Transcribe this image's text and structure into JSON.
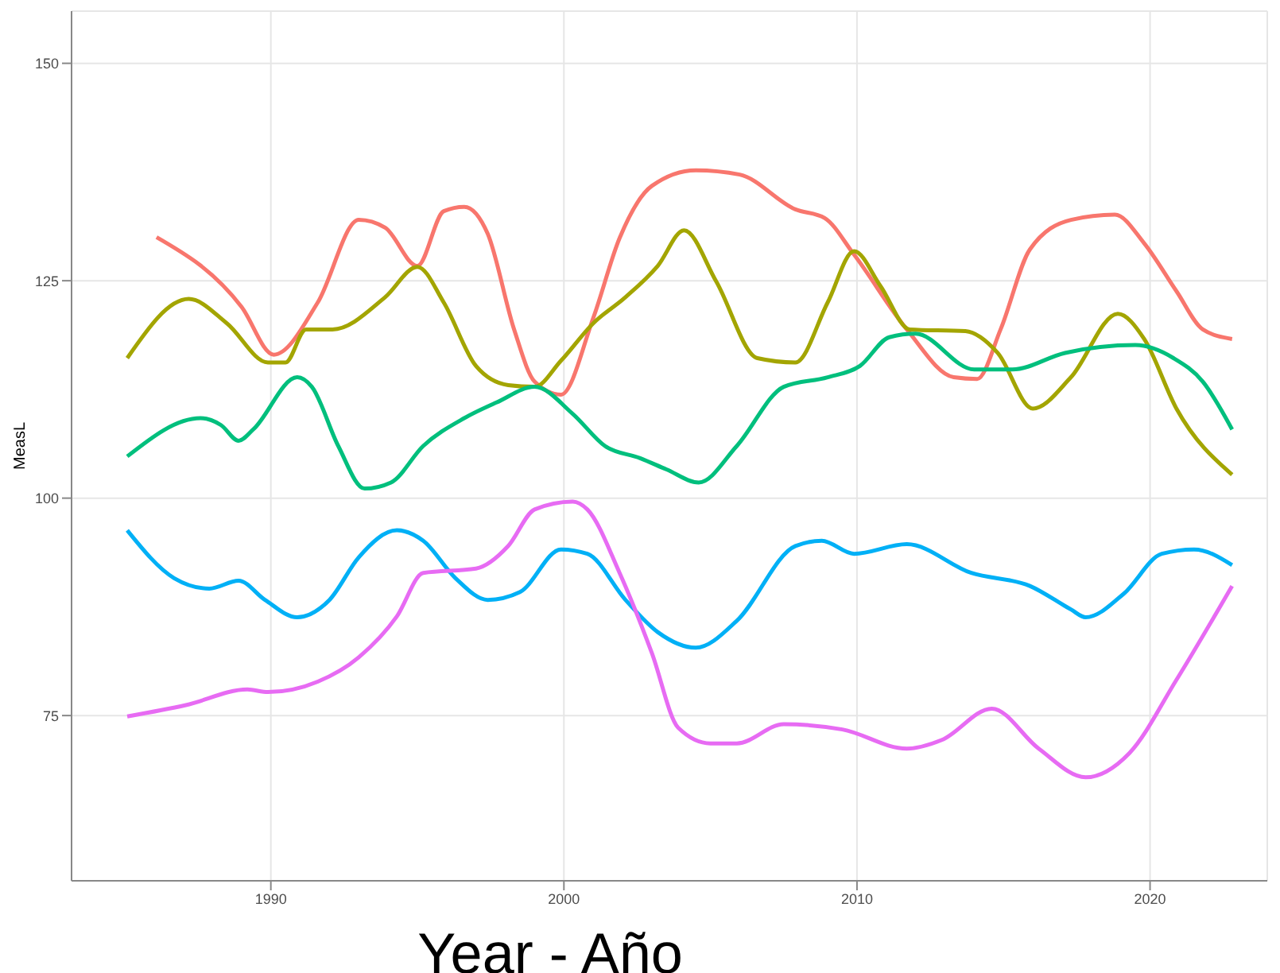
{
  "chart_data": {
    "type": "line",
    "xlabel": "Year - Año",
    "ylabel": "MeasL",
    "xlim": [
      1983.2,
      2024
    ],
    "xticks": [
      1990,
      2000,
      2010,
      2020
    ],
    "ylim": [
      56,
      156
    ],
    "yticks": [
      75,
      100,
      125,
      150
    ],
    "grid": true,
    "legend": false,
    "marker": "none",
    "series": [
      {
        "color": "#f8766d",
        "x": [
          1986.1,
          1989.0,
          1990.1,
          1991.6,
          1993.0,
          1993.9,
          1995.0,
          1995.9,
          1996.6,
          1997.4,
          1998.3,
          1999.0,
          1999.9,
          2001.0,
          2001.9,
          2003.0,
          2004.5,
          2006.0,
          2007.9,
          2008.9,
          2009.9,
          2011.7,
          2013.3,
          2014.1,
          2014.9,
          2015.9,
          2017.3,
          2018.8,
          2019.8,
          2020.9,
          2021.8,
          2022.8
        ],
        "values": [
          130.0,
          122.0,
          116.5,
          122.5,
          132.0,
          131.1,
          126.7,
          133.0,
          133.5,
          130.4,
          119.4,
          113.4,
          111.9,
          120.7,
          129.9,
          135.9,
          137.7,
          137.2,
          133.2,
          132.2,
          128.0,
          119.4,
          113.9,
          113.7,
          119.4,
          128.6,
          132.0,
          132.6,
          129.3,
          123.8,
          119.4,
          118.3
        ]
      },
      {
        "color": "#a3a500",
        "x": [
          1985.1,
          1987.2,
          1988.5,
          1989.9,
          1990.5,
          1991.2,
          1992.1,
          1993.9,
          1995.0,
          1995.9,
          1997.0,
          1998.1,
          1999.0,
          1999.9,
          2001.0,
          2002.1,
          2003.2,
          2004.1,
          2005.2,
          2006.6,
          2007.9,
          2009.0,
          2009.9,
          2010.8,
          2011.8,
          2013.7,
          2014.8,
          2016.0,
          2017.3,
          2018.9,
          2019.8,
          2020.9,
          2022.8
        ],
        "values": [
          116.1,
          122.9,
          120.1,
          115.6,
          115.6,
          119.4,
          119.4,
          123.1,
          126.6,
          122.5,
          115.2,
          113.0,
          112.8,
          115.8,
          120.1,
          123.1,
          126.7,
          130.8,
          124.9,
          116.1,
          115.6,
          122.5,
          128.4,
          124.4,
          119.4,
          119.2,
          116.7,
          110.3,
          113.9,
          121.2,
          118.3,
          110.3,
          102.7
        ]
      },
      {
        "color": "#00bf7d",
        "x": [
          1985.1,
          1987.6,
          1988.3,
          1988.9,
          1989.4,
          1990.9,
          1991.4,
          1992.3,
          1993.2,
          1994.1,
          1995.2,
          1996.6,
          1997.7,
          1999.0,
          2000.3,
          2001.4,
          2002.6,
          2003.5,
          2004.6,
          2005.9,
          2007.5,
          2009.0,
          2010.1,
          2011.1,
          2012.0,
          2014.0,
          2015.3,
          2017.1,
          2019.5,
          2020.8,
          2021.8,
          2022.8
        ],
        "values": [
          104.8,
          109.2,
          108.4,
          106.6,
          107.9,
          113.9,
          112.8,
          106.0,
          101.1,
          101.8,
          106.0,
          109.2,
          111.0,
          112.8,
          109.7,
          106.0,
          104.6,
          103.3,
          101.8,
          106.0,
          112.8,
          113.9,
          115.2,
          118.5,
          118.9,
          114.8,
          114.8,
          116.7,
          117.6,
          116.1,
          113.4,
          107.9
        ]
      },
      {
        "color": "#00b0f6",
        "x": [
          1985.1,
          1986.7,
          1987.9,
          1988.9,
          1989.8,
          1990.9,
          1992.0,
          1993.0,
          1994.3,
          1995.2,
          1996.3,
          1997.4,
          1998.5,
          1999.9,
          2000.8,
          2002.1,
          2003.2,
          2004.5,
          2005.9,
          2007.9,
          2008.8,
          2009.9,
          2011.7,
          2013.9,
          2015.9,
          2017.3,
          2017.8,
          2019.1,
          2020.4,
          2021.5,
          2022.8
        ],
        "values": [
          96.3,
          90.8,
          89.6,
          90.5,
          88.3,
          86.3,
          88.3,
          93.2,
          96.3,
          95.1,
          90.8,
          88.3,
          89.2,
          94.1,
          93.6,
          88.3,
          84.6,
          82.8,
          85.9,
          94.5,
          95.1,
          93.6,
          94.7,
          91.4,
          89.9,
          87.2,
          86.3,
          89.0,
          93.6,
          94.1,
          92.3
        ]
      },
      {
        "color": "#e76bf3",
        "x": [
          1985.1,
          1987.1,
          1989.2,
          1989.9,
          1991.6,
          1993.0,
          1994.3,
          1995.2,
          1997.0,
          1998.1,
          1999.0,
          2000.3,
          2000.8,
          2001.9,
          2003.0,
          2003.9,
          2005.0,
          2005.9,
          2007.5,
          2009.5,
          2011.7,
          2012.9,
          2014.6,
          2016.2,
          2017.8,
          2019.3,
          2020.9,
          2022.8
        ],
        "values": [
          74.9,
          76.2,
          78.0,
          77.7,
          78.9,
          81.7,
          86.4,
          91.4,
          91.9,
          94.5,
          98.7,
          99.6,
          98.7,
          91.4,
          82.2,
          73.6,
          71.8,
          71.8,
          74.0,
          73.4,
          71.2,
          72.2,
          75.8,
          71.2,
          67.9,
          70.7,
          79.1,
          89.9
        ]
      }
    ]
  }
}
